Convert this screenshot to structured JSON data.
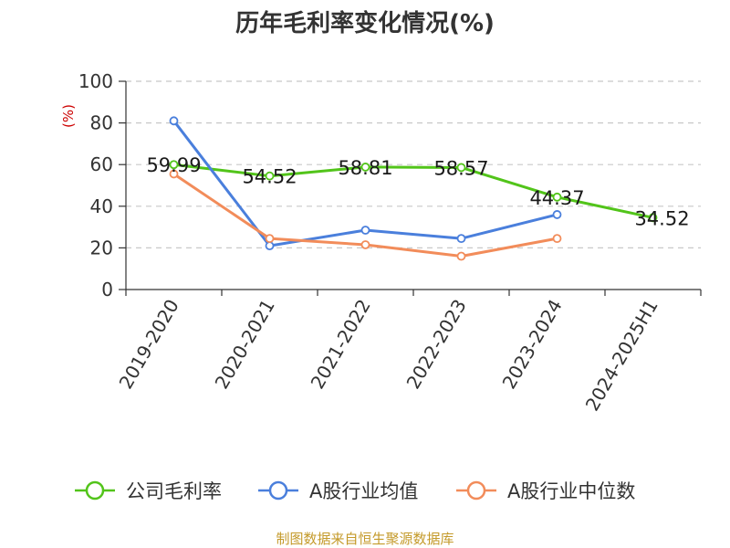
{
  "chart_data": {
    "type": "line",
    "title": "历年毛利率变化情况(%)",
    "ylabel": "(%)",
    "categories": [
      "2019-2020",
      "2020-2021",
      "2021-2022",
      "2022-2023",
      "2023-2024",
      "2024-2025H1"
    ],
    "ylim": [
      0,
      100
    ],
    "yticks": [
      0,
      20,
      40,
      60,
      80,
      100
    ],
    "grid": true,
    "legend_position": "bottom",
    "series": [
      {
        "name": "公司毛利率",
        "color": "#52c41a",
        "values": [
          59.99,
          54.52,
          58.81,
          58.57,
          44.37,
          34.52
        ],
        "labels": [
          "59.99",
          "54.52",
          "58.81",
          "58.57",
          "44.37",
          "34.52"
        ]
      },
      {
        "name": "A股行业均值",
        "color": "#4a7fdc",
        "values": [
          81,
          21,
          28.5,
          24.5,
          36,
          null
        ]
      },
      {
        "name": "A股行业中位数",
        "color": "#f28c5a",
        "values": [
          55.5,
          24.5,
          21.5,
          16,
          24.5,
          null
        ]
      }
    ]
  },
  "source": "制图数据来自恒生聚源数据库"
}
